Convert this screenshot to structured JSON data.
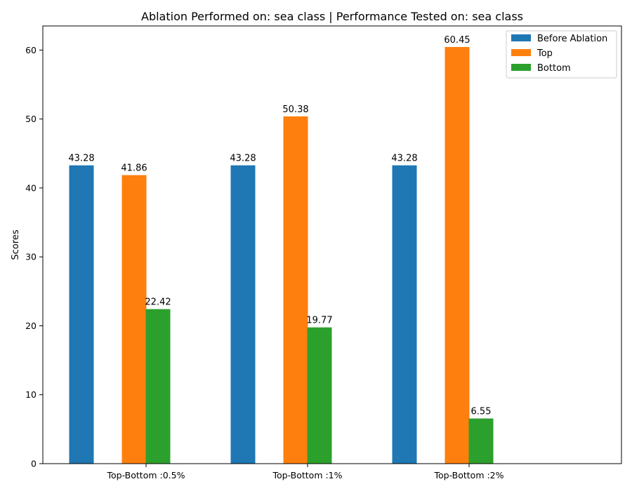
{
  "chart_data": {
    "type": "bar",
    "title": "Ablation Performed on: sea class | Performance Tested on: sea class",
    "xlabel": "",
    "ylabel": "Scores",
    "categories": [
      "Top-Bottom :0.5%",
      "Top-Bottom :1%",
      "Top-Bottom :2%"
    ],
    "series": [
      {
        "name": "Before Ablation",
        "color": "#1f77b4",
        "values": [
          43.28,
          43.28,
          43.28
        ]
      },
      {
        "name": "Top",
        "color": "#ff7f0e",
        "values": [
          41.86,
          50.38,
          60.45
        ]
      },
      {
        "name": "Bottom",
        "color": "#2ca02c",
        "values": [
          22.42,
          19.77,
          6.55
        ]
      }
    ],
    "ylim": [
      0,
      63.5
    ],
    "yticks": [
      0,
      10,
      20,
      30,
      40,
      50,
      60
    ],
    "grid": false,
    "legend_position": "top-right"
  }
}
